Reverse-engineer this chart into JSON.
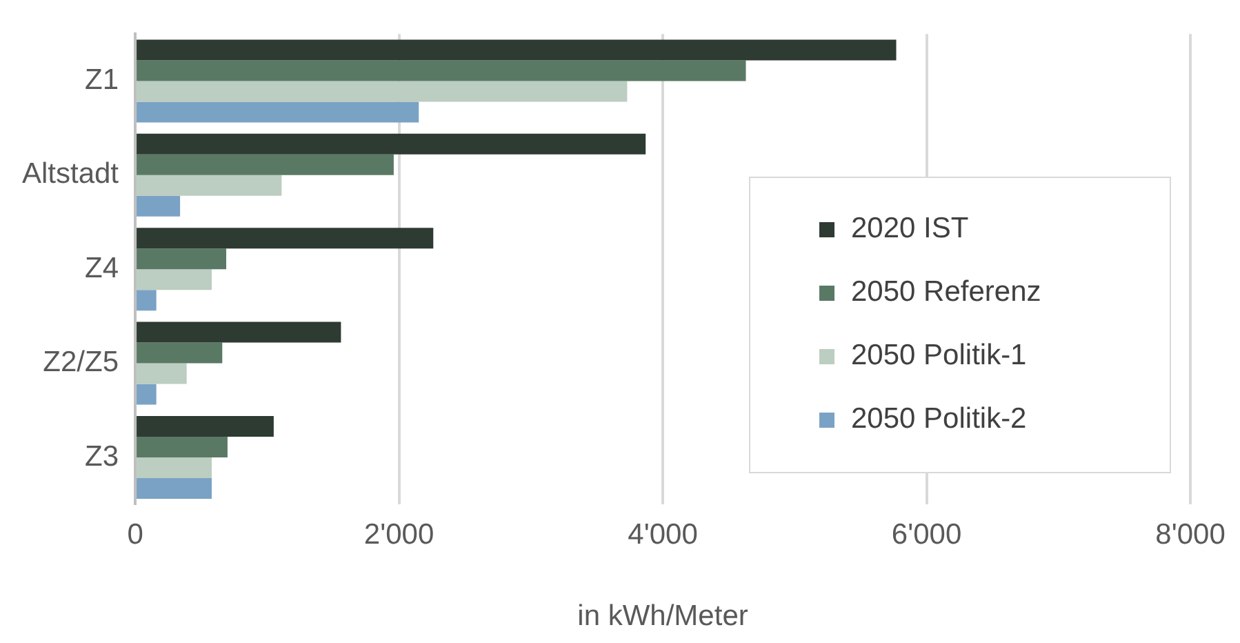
{
  "chart_data": {
    "type": "bar",
    "orientation": "horizontal",
    "xlabel": "in kWh/Meter",
    "categories": [
      "Z1",
      "Altstadt",
      "Z4",
      "Z2/Z5",
      "Z3"
    ],
    "series": [
      {
        "name": "2020 IST",
        "color": "#2d3b32",
        "values": [
          5770,
          3870,
          2260,
          1560,
          1050
        ]
      },
      {
        "name": "2050 Referenz",
        "color": "#5a7964",
        "values": [
          4630,
          1960,
          690,
          660,
          700
        ]
      },
      {
        "name": "2050 Politik-1",
        "color": "#bccdc1",
        "values": [
          3730,
          1110,
          580,
          390,
          580
        ]
      },
      {
        "name": "2050 Politik-2",
        "color": "#7aa2c4",
        "values": [
          2150,
          340,
          160,
          160,
          580
        ]
      }
    ],
    "xlim": [
      0,
      8000
    ],
    "xticks": [
      0,
      {
        "value": 2000,
        "label": "2'000"
      },
      {
        "value": 4000,
        "label": "4'000"
      },
      {
        "value": 6000,
        "label": "6'000"
      },
      {
        "value": 8000,
        "label": "8'000"
      }
    ],
    "grid": "x",
    "legend": "right"
  }
}
